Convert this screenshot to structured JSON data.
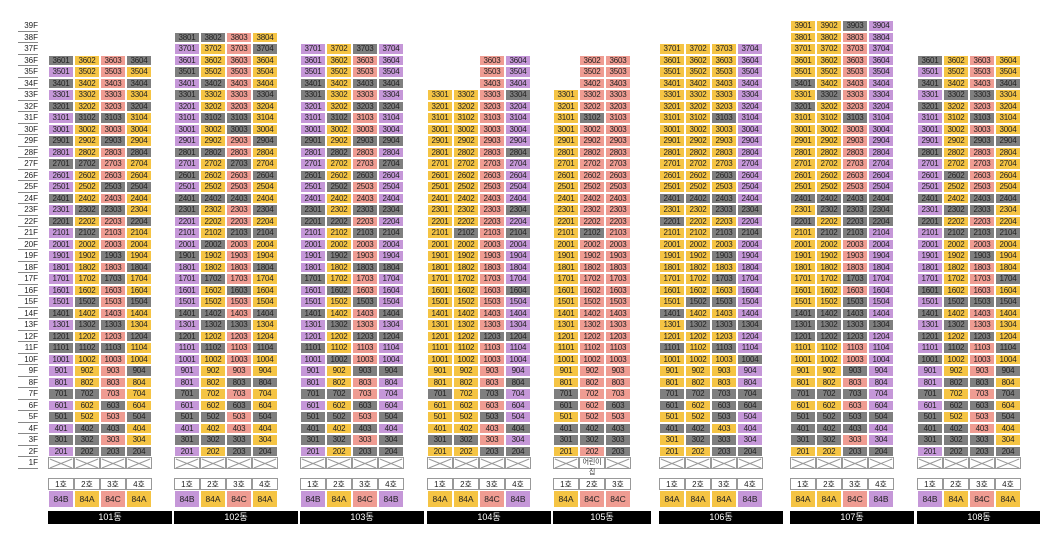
{
  "colors": {
    "purple": "#c597d8",
    "yellow": "#f5c444",
    "pink": "#ef9c92",
    "gray": "#7f7f7f"
  },
  "floors": [
    "39F",
    "38F",
    "37F",
    "36F",
    "35F",
    "34F",
    "33F",
    "32F",
    "31F",
    "30F",
    "29F",
    "28F",
    "27F",
    "26F",
    "25F",
    "24F",
    "23F",
    "22F",
    "21F",
    "20F",
    "19F",
    "18F",
    "17F",
    "16F",
    "15F",
    "14F",
    "13F",
    "12F",
    "11F",
    "10F",
    "9F",
    "8F",
    "7F",
    "6F",
    "5F",
    "4F",
    "3F",
    "2F",
    "1F"
  ],
  "unit_headers": [
    "1호",
    "2호",
    "3호",
    "4호"
  ],
  "special_unit_label": "어린이집",
  "buildings": [
    {
      "name": "101동",
      "top": 36,
      "line_types": [
        "84B",
        "84A",
        "84C",
        "84A"
      ],
      "line_colors": [
        "purple",
        "yellow",
        "pink",
        "yellow"
      ],
      "gray": {
        "3601": 1,
        "3401": 1,
        "3201": 1,
        "2901": 1,
        "2701": 1,
        "2401": 1,
        "2201": 1,
        "1401": 1,
        "1201": 1,
        "1101": 1,
        "0701": 1,
        "0501": 1,
        "0301": 1,
        "3102": 1,
        "2702": 1,
        "2302": 1,
        "2102": 1,
        "1502": 1,
        "1302": 1,
        "1102": 1,
        "0702": 1,
        "0402": 1,
        "0302": 1,
        "0202": 1,
        "3103": 1,
        "2903": 1,
        "2503": 1,
        "2303": 1,
        "1903": 1,
        "1703": 1,
        "1303": 1,
        "1103": 1,
        "0603": 1,
        "0403": 1,
        "0203": 1,
        "3604": 1,
        "3404": 1,
        "3204": 1,
        "2804": 1,
        "2504": 1,
        "2204": 1,
        "1804": 1,
        "1504": 1,
        "1204": 1,
        "0904": 1,
        "0504": 1,
        "0204": 1
      }
    },
    {
      "name": "102동",
      "top": 38,
      "line_types": [
        "84B",
        "84A",
        "84C",
        "84A"
      ],
      "line_colors": [
        "purple",
        "yellow",
        "pink",
        "yellow"
      ],
      "gray": {
        "3801": 1,
        "3501": 1,
        "3301": 1,
        "2801": 1,
        "2601": 1,
        "2401": 1,
        "2301": 1,
        "1901": 1,
        "1401": 1,
        "1201": 1,
        "0701": 1,
        "0501": 1,
        "0301": 1,
        "3802": 1,
        "3402": 1,
        "3102": 1,
        "2802": 1,
        "2402": 1,
        "2002": 1,
        "1702": 1,
        "1402": 1,
        "1302": 1,
        "1102": 1,
        "0502": 1,
        "0302": 1,
        "3103": 1,
        "3003": 1,
        "2703": 1,
        "2403": 1,
        "2103": 1,
        "1603": 1,
        "1303": 1,
        "0803": 1,
        "0603": 1,
        "0303": 1,
        "0203": 1,
        "3704": 1,
        "3304": 1,
        "2904": 1,
        "2604": 1,
        "2304": 1,
        "2104": 1,
        "1804": 1,
        "1404": 1,
        "1104": 1,
        "0804": 1,
        "0504": 1,
        "0204": 1
      }
    },
    {
      "name": "103동",
      "top": 37,
      "line_types": [
        "84B",
        "84A",
        "84C",
        "84B"
      ],
      "line_colors": [
        "purple",
        "yellow",
        "pink",
        "purple"
      ],
      "gray": {
        "3401": 1,
        "3301": 1,
        "2901": 1,
        "2601": 1,
        "2301": 1,
        "2201": 1,
        "1701": 1,
        "1401": 1,
        "1101": 1,
        "0701": 1,
        "0501": 1,
        "0401": 1,
        "0301": 1,
        "3102": 1,
        "2802": 1,
        "2502": 1,
        "2202": 1,
        "1902": 1,
        "1602": 1,
        "1302": 1,
        "1002": 1,
        "0702": 1,
        "0502": 1,
        "0302": 1,
        "3703": 1,
        "3403": 1,
        "3203": 1,
        "2903": 1,
        "2603": 1,
        "2303": 1,
        "2103": 1,
        "1803": 1,
        "1503": 1,
        "1203": 1,
        "0903": 1,
        "0603": 1,
        "0403": 1,
        "0203": 1,
        "3404": 1,
        "3204": 1,
        "2904": 1,
        "2704": 1,
        "2304": 1,
        "2104": 1,
        "1804": 1,
        "1404": 1,
        "1204": 1,
        "0904": 1,
        "0504": 1,
        "0304": 1,
        "0204": 1
      }
    },
    {
      "name": "104동",
      "top": 33,
      "line_types": [
        "84A",
        "84A",
        "84C",
        "84B"
      ],
      "line_colors": [
        "yellow",
        "yellow",
        "pink",
        "purple"
      ],
      "rows_by_line": [
        33,
        33,
        36,
        36
      ],
      "gray": {
        "2102": 1,
        "1203": 1,
        "0703": 1,
        "0503": 1,
        "0203": 1,
        "3304": 1,
        "2804": 1,
        "2304": 1,
        "2104": 1,
        "1604": 1,
        "1204": 1,
        "0804": 1,
        "0404": 1,
        "0204": 1,
        "0701": 1,
        "0301": 1,
        "0302": 1
      }
    },
    {
      "name": "105동",
      "top": 33,
      "line_types": [
        "84A",
        "84C",
        "84C"
      ],
      "line_colors": [
        "yellow",
        "pink",
        "pink"
      ],
      "rows_by_line": [
        33,
        36,
        36
      ],
      "special": {
        "0102": 1
      },
      "gray": {
        "3102": 1,
        "2102": 1,
        "0701": 1,
        "0601": 1,
        "0401": 1,
        "0301": 1,
        "0302": 1,
        "0402": 1,
        "0603": 1,
        "0403": 1,
        "0303": 1,
        "0203": 1
      }
    },
    {
      "name": "106동",
      "top": 37,
      "line_types": [
        "84A",
        "84A",
        "84A",
        "84B"
      ],
      "line_colors": [
        "yellow",
        "yellow",
        "yellow",
        "purple"
      ],
      "gray": {
        "2401": 1,
        "2201": 1,
        "1401": 1,
        "1101": 1,
        "0701": 1,
        "0601": 1,
        "0401": 1,
        "2402": 1,
        "1502": 1,
        "1302": 1,
        "0702": 1,
        "0402": 1,
        "0302": 1,
        "3103": 1,
        "2603": 1,
        "2403": 1,
        "2303": 1,
        "2103": 1,
        "1903": 1,
        "1703": 1,
        "1503": 1,
        "1303": 1,
        "1103": 1,
        "0703": 1,
        "0603": 1,
        "0503": 1,
        "0303": 1,
        "0203": 1,
        "2304": 1,
        "2104": 1,
        "1304": 1,
        "1004": 1,
        "0704": 1,
        "0604": 1,
        "0204": 1
      }
    },
    {
      "name": "107동",
      "top": 39,
      "line_types": [
        "84A",
        "84A",
        "84C",
        "84B"
      ],
      "line_colors": [
        "yellow",
        "yellow",
        "pink",
        "purple"
      ],
      "gray": {
        "3401": 1,
        "3201": 1,
        "2401": 1,
        "2201": 1,
        "1401": 1,
        "1301": 1,
        "1201": 1,
        "0701": 1,
        "0501": 1,
        "0401": 1,
        "0301": 1,
        "3302": 1,
        "2402": 1,
        "2302": 1,
        "2102": 1,
        "1402": 1,
        "1302": 1,
        "1202": 1,
        "0702": 1,
        "0502": 1,
        "0402": 1,
        "0302": 1,
        "3903": 1,
        "3103": 1,
        "2403": 1,
        "2303": 1,
        "2203": 1,
        "2103": 1,
        "1703": 1,
        "1503": 1,
        "1403": 1,
        "1303": 1,
        "1203": 1,
        "0903": 1,
        "0703": 1,
        "0503": 1,
        "0403": 1,
        "0203": 1,
        "2404": 1,
        "2304": 1,
        "2204": 1,
        "1304": 1,
        "0504": 1,
        "0204": 1
      }
    },
    {
      "name": "108동",
      "top": 36,
      "line_types": [
        "84B",
        "84A",
        "84C",
        "84A"
      ],
      "line_colors": [
        "purple",
        "yellow",
        "pink",
        "yellow"
      ],
      "gray": {
        "3601": 1,
        "3401": 1,
        "3201": 1,
        "2801": 1,
        "2401": 1,
        "2201": 1,
        "1601": 1,
        "1401": 1,
        "1201": 1,
        "1001": 1,
        "0701": 1,
        "0501": 1,
        "0401": 1,
        "0301": 1,
        "3302": 1,
        "2602": 1,
        "2302": 1,
        "2102": 1,
        "1502": 1,
        "1302": 1,
        "1102": 1,
        "0802": 1,
        "0602": 1,
        "0402": 1,
        "0302": 1,
        "0202": 1,
        "3303": 1,
        "3103": 1,
        "2903": 1,
        "2403": 1,
        "2303": 1,
        "2103": 1,
        "1903": 1,
        "1503": 1,
        "1203": 1,
        "0803": 1,
        "0603": 1,
        "0303": 1,
        "0203": 1,
        "3404": 1,
        "2904": 1,
        "2404": 1,
        "2104": 1,
        "1704": 1,
        "1504": 1,
        "1104": 1,
        "0904": 1,
        "0704": 1,
        "0504": 1,
        "0204": 1
      }
    }
  ]
}
